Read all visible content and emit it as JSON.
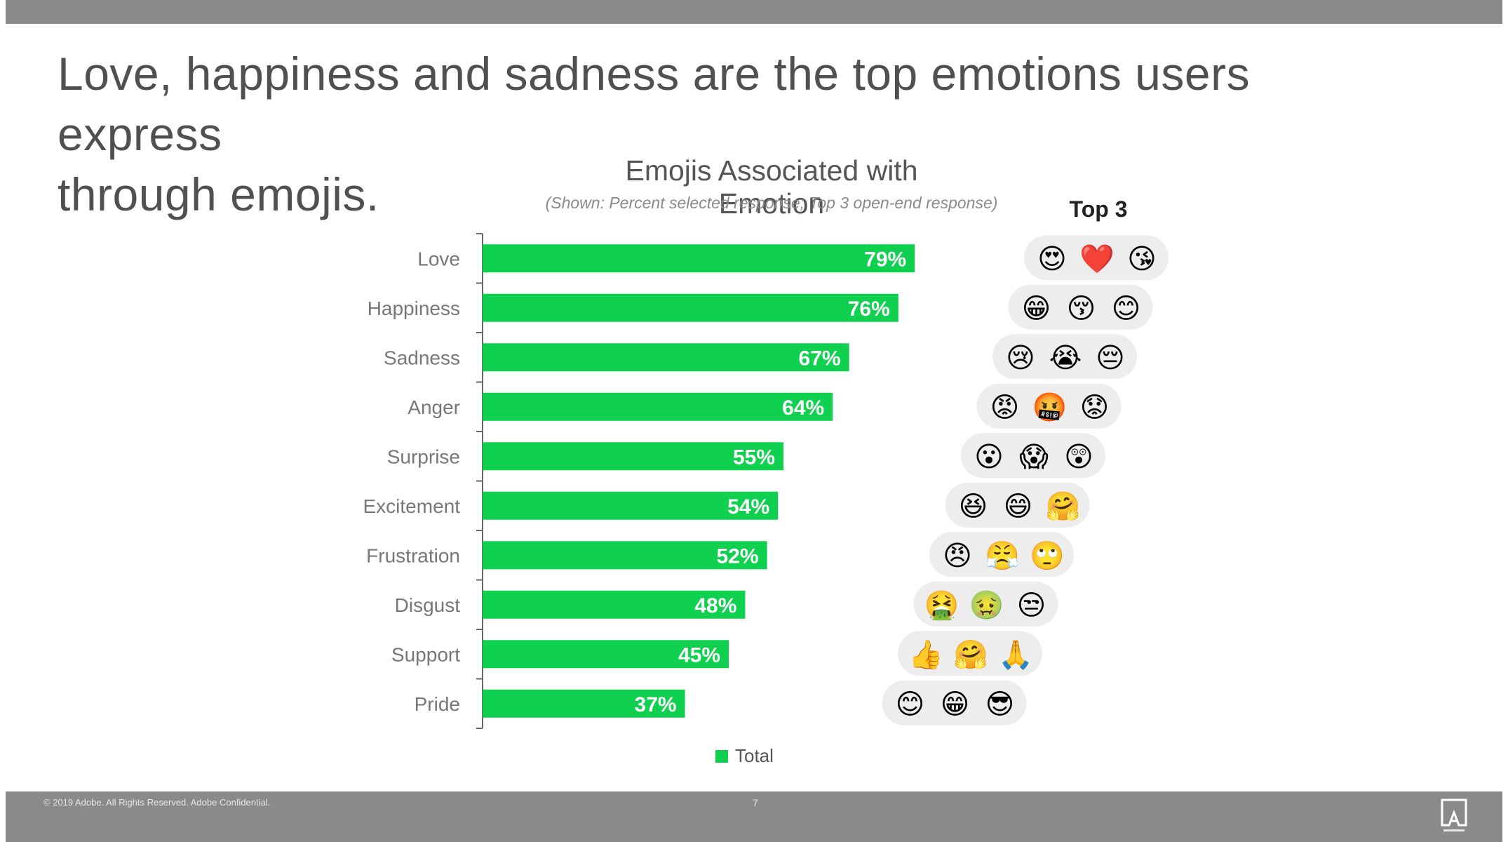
{
  "headline": {
    "line1": "Love, happiness and sadness are the top emotions users express",
    "line2": "through emojis."
  },
  "top3_label": "Top 3",
  "footer": {
    "copyright": "© 2019 Adobe. All Rights Reserved. Adobe Confidential.",
    "page_number": "7"
  },
  "legend": {
    "label": "Total"
  },
  "colors": {
    "bar": "#0fd14f",
    "bar_label": "#ffffff",
    "bubble": "#ededed",
    "band": "#8a8a8a"
  },
  "chart_data": {
    "type": "bar",
    "orientation": "horizontal",
    "title": "Emojis Associated with Emotion",
    "subtitle": "(Shown: Percent selected response; Top 3 open-end response)",
    "categories": [
      "Love",
      "Happiness",
      "Sadness",
      "Anger",
      "Surprise",
      "Excitement",
      "Frustration",
      "Disgust",
      "Support",
      "Pride"
    ],
    "series": [
      {
        "name": "Total",
        "values": [
          79,
          76,
          67,
          64,
          55,
          54,
          52,
          48,
          45,
          37
        ]
      }
    ],
    "data_labels": [
      "79%",
      "76%",
      "67%",
      "64%",
      "55%",
      "54%",
      "52%",
      "48%",
      "45%",
      "37%"
    ],
    "xlim": [
      0,
      100
    ],
    "legend_position": "bottom",
    "grid": false,
    "top3_emojis": [
      [
        "😍",
        "❤️",
        "😘"
      ],
      [
        "😁",
        "😚",
        "😊"
      ],
      [
        "😢",
        "😭",
        "😔"
      ],
      [
        "😡",
        "🤬",
        "😟"
      ],
      [
        "😮",
        "😱",
        "😲"
      ],
      [
        "😆",
        "😄",
        "🤗"
      ],
      [
        "😠",
        "😤",
        "🙄"
      ],
      [
        "🤮",
        "🤢",
        "😒"
      ],
      [
        "👍",
        "🤗",
        "🙏"
      ],
      [
        "😊",
        "😁",
        "😎"
      ]
    ]
  }
}
